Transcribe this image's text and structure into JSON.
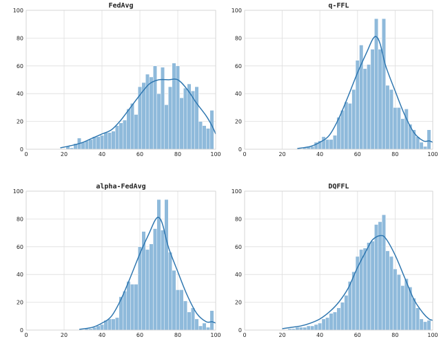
{
  "chart_data": [
    {
      "type": "bar",
      "title": "FedAvg",
      "xlabel": "",
      "ylabel": "",
      "xlim": [
        0,
        100
      ],
      "ylim": [
        0,
        100
      ],
      "xticks": [
        0,
        20,
        40,
        60,
        80,
        100
      ],
      "yticks": [
        0,
        20,
        40,
        60,
        80,
        100
      ],
      "grid": true,
      "bin_width": 2,
      "bins": [
        {
          "x": 22,
          "y": 2
        },
        {
          "x": 24,
          "y": 1
        },
        {
          "x": 26,
          "y": 4
        },
        {
          "x": 28,
          "y": 8
        },
        {
          "x": 30,
          "y": 5
        },
        {
          "x": 32,
          "y": 6
        },
        {
          "x": 34,
          "y": 7
        },
        {
          "x": 36,
          "y": 9
        },
        {
          "x": 38,
          "y": 9
        },
        {
          "x": 40,
          "y": 10
        },
        {
          "x": 42,
          "y": 12
        },
        {
          "x": 44,
          "y": 12
        },
        {
          "x": 46,
          "y": 13
        },
        {
          "x": 48,
          "y": 17
        },
        {
          "x": 50,
          "y": 19
        },
        {
          "x": 52,
          "y": 21
        },
        {
          "x": 54,
          "y": 29
        },
        {
          "x": 56,
          "y": 33
        },
        {
          "x": 58,
          "y": 25
        },
        {
          "x": 60,
          "y": 45
        },
        {
          "x": 62,
          "y": 48
        },
        {
          "x": 64,
          "y": 54
        },
        {
          "x": 66,
          "y": 52
        },
        {
          "x": 68,
          "y": 60
        },
        {
          "x": 70,
          "y": 40
        },
        {
          "x": 72,
          "y": 59
        },
        {
          "x": 74,
          "y": 32
        },
        {
          "x": 76,
          "y": 45
        },
        {
          "x": 78,
          "y": 62
        },
        {
          "x": 80,
          "y": 60
        },
        {
          "x": 82,
          "y": 37
        },
        {
          "x": 84,
          "y": 44
        },
        {
          "x": 86,
          "y": 47
        },
        {
          "x": 88,
          "y": 42
        },
        {
          "x": 90,
          "y": 45
        },
        {
          "x": 92,
          "y": 20
        },
        {
          "x": 94,
          "y": 17
        },
        {
          "x": 96,
          "y": 15
        },
        {
          "x": 98,
          "y": 28
        }
      ],
      "kde": [
        [
          18,
          1
        ],
        [
          25,
          3
        ],
        [
          30,
          5
        ],
        [
          35,
          8
        ],
        [
          40,
          11
        ],
        [
          45,
          14
        ],
        [
          50,
          21
        ],
        [
          55,
          30
        ],
        [
          60,
          39
        ],
        [
          65,
          47
        ],
        [
          70,
          50
        ],
        [
          75,
          50
        ],
        [
          80,
          50
        ],
        [
          85,
          43
        ],
        [
          90,
          33
        ],
        [
          95,
          24
        ],
        [
          98,
          17
        ],
        [
          100,
          11
        ]
      ]
    },
    {
      "type": "bar",
      "title": "q-FFL",
      "xlabel": "",
      "ylabel": "",
      "xlim": [
        0,
        100
      ],
      "ylim": [
        0,
        100
      ],
      "xticks": [
        0,
        20,
        40,
        60,
        80,
        100
      ],
      "yticks": [
        0,
        20,
        40,
        60,
        80,
        100
      ],
      "grid": true,
      "bin_width": 2,
      "bins": [
        {
          "x": 32,
          "y": 1
        },
        {
          "x": 34,
          "y": 2
        },
        {
          "x": 36,
          "y": 2
        },
        {
          "x": 38,
          "y": 5
        },
        {
          "x": 40,
          "y": 6
        },
        {
          "x": 42,
          "y": 9
        },
        {
          "x": 44,
          "y": 7
        },
        {
          "x": 46,
          "y": 7
        },
        {
          "x": 48,
          "y": 10
        },
        {
          "x": 50,
          "y": 23
        },
        {
          "x": 52,
          "y": 28
        },
        {
          "x": 54,
          "y": 34
        },
        {
          "x": 56,
          "y": 33
        },
        {
          "x": 58,
          "y": 43
        },
        {
          "x": 60,
          "y": 64
        },
        {
          "x": 62,
          "y": 75
        },
        {
          "x": 64,
          "y": 58
        },
        {
          "x": 66,
          "y": 61
        },
        {
          "x": 68,
          "y": 72
        },
        {
          "x": 70,
          "y": 94
        },
        {
          "x": 72,
          "y": 72
        },
        {
          "x": 74,
          "y": 94
        },
        {
          "x": 76,
          "y": 46
        },
        {
          "x": 78,
          "y": 43
        },
        {
          "x": 80,
          "y": 30
        },
        {
          "x": 82,
          "y": 30
        },
        {
          "x": 84,
          "y": 22
        },
        {
          "x": 86,
          "y": 29
        },
        {
          "x": 88,
          "y": 18
        },
        {
          "x": 90,
          "y": 14
        },
        {
          "x": 92,
          "y": 9
        },
        {
          "x": 94,
          "y": 5
        },
        {
          "x": 96,
          "y": 2
        },
        {
          "x": 98,
          "y": 14
        }
      ],
      "kde": [
        [
          28,
          0.5
        ],
        [
          35,
          2
        ],
        [
          40,
          5
        ],
        [
          45,
          10
        ],
        [
          50,
          22
        ],
        [
          55,
          38
        ],
        [
          60,
          55
        ],
        [
          65,
          70
        ],
        [
          68,
          79
        ],
        [
          70,
          81
        ],
        [
          72,
          76
        ],
        [
          75,
          60
        ],
        [
          80,
          42
        ],
        [
          85,
          25
        ],
        [
          90,
          12
        ],
        [
          95,
          6
        ],
        [
          98,
          6
        ],
        [
          100,
          5
        ]
      ]
    },
    {
      "type": "bar",
      "title": "alpha-FedAvg",
      "xlabel": "",
      "ylabel": "",
      "xlim": [
        0,
        100
      ],
      "ylim": [
        0,
        100
      ],
      "xticks": [
        0,
        20,
        40,
        60,
        80,
        100
      ],
      "yticks": [
        0,
        20,
        40,
        60,
        80,
        100
      ],
      "grid": true,
      "bin_width": 2,
      "bins": [
        {
          "x": 32,
          "y": 1
        },
        {
          "x": 34,
          "y": 1
        },
        {
          "x": 36,
          "y": 2
        },
        {
          "x": 38,
          "y": 3
        },
        {
          "x": 40,
          "y": 4
        },
        {
          "x": 42,
          "y": 7
        },
        {
          "x": 44,
          "y": 8
        },
        {
          "x": 46,
          "y": 8
        },
        {
          "x": 48,
          "y": 9
        },
        {
          "x": 50,
          "y": 24
        },
        {
          "x": 52,
          "y": 28
        },
        {
          "x": 54,
          "y": 35
        },
        {
          "x": 56,
          "y": 33
        },
        {
          "x": 58,
          "y": 33
        },
        {
          "x": 60,
          "y": 60
        },
        {
          "x": 62,
          "y": 71
        },
        {
          "x": 64,
          "y": 58
        },
        {
          "x": 66,
          "y": 62
        },
        {
          "x": 68,
          "y": 73
        },
        {
          "x": 70,
          "y": 94
        },
        {
          "x": 72,
          "y": 72
        },
        {
          "x": 74,
          "y": 94
        },
        {
          "x": 76,
          "y": 56
        },
        {
          "x": 78,
          "y": 43
        },
        {
          "x": 80,
          "y": 29
        },
        {
          "x": 82,
          "y": 29
        },
        {
          "x": 84,
          "y": 21
        },
        {
          "x": 86,
          "y": 13
        },
        {
          "x": 88,
          "y": 16
        },
        {
          "x": 90,
          "y": 8
        },
        {
          "x": 92,
          "y": 3
        },
        {
          "x": 94,
          "y": 5
        },
        {
          "x": 96,
          "y": 2
        },
        {
          "x": 98,
          "y": 14
        }
      ],
      "kde": [
        [
          28,
          0.5
        ],
        [
          35,
          2
        ],
        [
          40,
          5
        ],
        [
          45,
          10
        ],
        [
          50,
          22
        ],
        [
          55,
          38
        ],
        [
          60,
          55
        ],
        [
          65,
          70
        ],
        [
          68,
          79
        ],
        [
          70,
          81
        ],
        [
          72,
          76
        ],
        [
          75,
          60
        ],
        [
          80,
          42
        ],
        [
          85,
          25
        ],
        [
          90,
          12
        ],
        [
          95,
          6
        ],
        [
          98,
          6
        ],
        [
          100,
          5
        ]
      ]
    },
    {
      "type": "bar",
      "title": "DQFFL",
      "xlabel": "",
      "ylabel": "",
      "xlim": [
        0,
        100
      ],
      "ylim": [
        0,
        100
      ],
      "xticks": [
        0,
        20,
        40,
        60,
        80,
        100
      ],
      "yticks": [
        0,
        20,
        40,
        60,
        80,
        100
      ],
      "grid": true,
      "bin_width": 2,
      "bins": [
        {
          "x": 24,
          "y": 1
        },
        {
          "x": 26,
          "y": 1
        },
        {
          "x": 28,
          "y": 2
        },
        {
          "x": 30,
          "y": 2
        },
        {
          "x": 32,
          "y": 2
        },
        {
          "x": 34,
          "y": 3
        },
        {
          "x": 36,
          "y": 3
        },
        {
          "x": 38,
          "y": 4
        },
        {
          "x": 40,
          "y": 5
        },
        {
          "x": 42,
          "y": 8
        },
        {
          "x": 44,
          "y": 9
        },
        {
          "x": 46,
          "y": 12
        },
        {
          "x": 48,
          "y": 13
        },
        {
          "x": 50,
          "y": 16
        },
        {
          "x": 52,
          "y": 20
        },
        {
          "x": 54,
          "y": 25
        },
        {
          "x": 56,
          "y": 35
        },
        {
          "x": 58,
          "y": 42
        },
        {
          "x": 60,
          "y": 53
        },
        {
          "x": 62,
          "y": 58
        },
        {
          "x": 64,
          "y": 59
        },
        {
          "x": 66,
          "y": 63
        },
        {
          "x": 68,
          "y": 64
        },
        {
          "x": 70,
          "y": 76
        },
        {
          "x": 72,
          "y": 78
        },
        {
          "x": 74,
          "y": 83
        },
        {
          "x": 76,
          "y": 57
        },
        {
          "x": 78,
          "y": 53
        },
        {
          "x": 80,
          "y": 44
        },
        {
          "x": 82,
          "y": 40
        },
        {
          "x": 84,
          "y": 32
        },
        {
          "x": 86,
          "y": 37
        },
        {
          "x": 88,
          "y": 31
        },
        {
          "x": 90,
          "y": 23
        },
        {
          "x": 92,
          "y": 16
        },
        {
          "x": 94,
          "y": 8
        },
        {
          "x": 96,
          "y": 6
        },
        {
          "x": 98,
          "y": 7
        }
      ],
      "kde": [
        [
          20,
          1
        ],
        [
          25,
          2
        ],
        [
          30,
          3
        ],
        [
          35,
          5
        ],
        [
          40,
          8
        ],
        [
          45,
          13
        ],
        [
          50,
          20
        ],
        [
          55,
          30
        ],
        [
          60,
          45
        ],
        [
          65,
          58
        ],
        [
          68,
          65
        ],
        [
          72,
          68
        ],
        [
          75,
          66
        ],
        [
          80,
          54
        ],
        [
          85,
          38
        ],
        [
          90,
          22
        ],
        [
          95,
          12
        ],
        [
          98,
          8
        ],
        [
          100,
          7
        ]
      ]
    }
  ]
}
